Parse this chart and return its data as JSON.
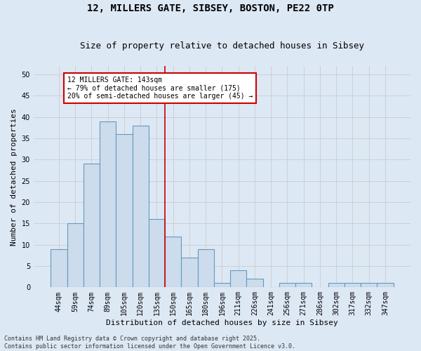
{
  "title_line1": "12, MILLERS GATE, SIBSEY, BOSTON, PE22 0TP",
  "title_line2": "Size of property relative to detached houses in Sibsey",
  "xlabel": "Distribution of detached houses by size in Sibsey",
  "ylabel": "Number of detached properties",
  "bar_labels": [
    "44sqm",
    "59sqm",
    "74sqm",
    "89sqm",
    "105sqm",
    "120sqm",
    "135sqm",
    "150sqm",
    "165sqm",
    "180sqm",
    "196sqm",
    "211sqm",
    "226sqm",
    "241sqm",
    "256sqm",
    "271sqm",
    "286sqm",
    "302sqm",
    "317sqm",
    "332sqm",
    "347sqm"
  ],
  "bar_values": [
    9,
    15,
    29,
    39,
    36,
    38,
    16,
    12,
    7,
    9,
    1,
    4,
    2,
    0,
    1,
    1,
    0,
    1,
    1,
    1,
    1
  ],
  "bar_color": "#ccdcec",
  "bar_edgecolor": "#6699bb",
  "bar_linewidth": 0.8,
  "vline_color": "#cc0000",
  "vline_linewidth": 1.2,
  "vline_xindex": 6.5,
  "annotation_text": "12 MILLERS GATE: 143sqm\n← 79% of detached houses are smaller (175)\n20% of semi-detached houses are larger (45) →",
  "annotation_box_edgecolor": "#cc0000",
  "annotation_box_facecolor": "#ffffff",
  "annotation_fontsize": 7,
  "ylim": [
    0,
    52
  ],
  "yticks": [
    0,
    5,
    10,
    15,
    20,
    25,
    30,
    35,
    40,
    45,
    50
  ],
  "grid_color": "#cccccc",
  "plot_bg_color": "#dde8f5",
  "fig_bg_color": "#dde8f5",
  "footer_text": "Contains HM Land Registry data © Crown copyright and database right 2025.\nContains public sector information licensed under the Open Government Licence v3.0.",
  "title_fontsize": 10,
  "subtitle_fontsize": 9,
  "xlabel_fontsize": 8,
  "ylabel_fontsize": 8,
  "tick_fontsize": 7,
  "footer_fontsize": 6
}
